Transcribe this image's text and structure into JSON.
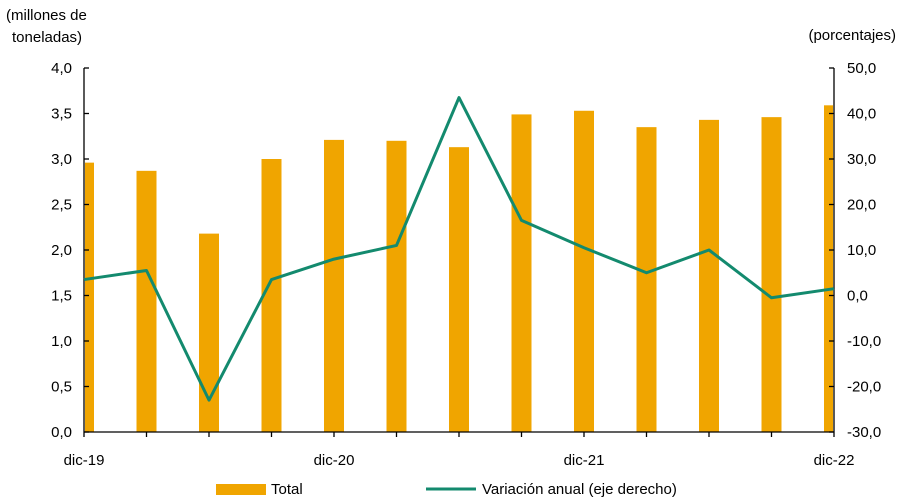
{
  "chart_data": {
    "type": "bar",
    "y_left_label": "(millones de toneladas)",
    "y_right_label": "(porcentajes)",
    "x_ticks": [
      "dic-19",
      "dic-20",
      "dic-21",
      "dic-22"
    ],
    "y_left_ticks": [
      "0,0",
      "0,5",
      "1,0",
      "1,5",
      "2,0",
      "2,5",
      "3,0",
      "3,5",
      "4,0"
    ],
    "y_right_ticks": [
      "-30,0",
      "-20,0",
      "-10,0",
      "0,0",
      "10,0",
      "20,0",
      "30,0",
      "40,0",
      "50,0"
    ],
    "ylim_left": [
      0,
      4
    ],
    "ylim_right": [
      -30,
      50
    ],
    "series": [
      {
        "name": "Total",
        "type": "bar",
        "axis": "left",
        "color": "#f0a500",
        "values": [
          2.96,
          2.87,
          2.18,
          3.0,
          3.21,
          3.2,
          3.13,
          3.49,
          3.53,
          3.35,
          3.43,
          3.46,
          3.59
        ]
      },
      {
        "name": "Variación anual (eje derecho)",
        "type": "line",
        "axis": "right",
        "color": "#138a6e",
        "values": [
          3.5,
          5.5,
          -23.0,
          3.5,
          8.0,
          11.0,
          43.5,
          16.5,
          10.5,
          5.0,
          10.0,
          -0.5,
          1.5
        ]
      }
    ],
    "legend_position": "bottom"
  }
}
